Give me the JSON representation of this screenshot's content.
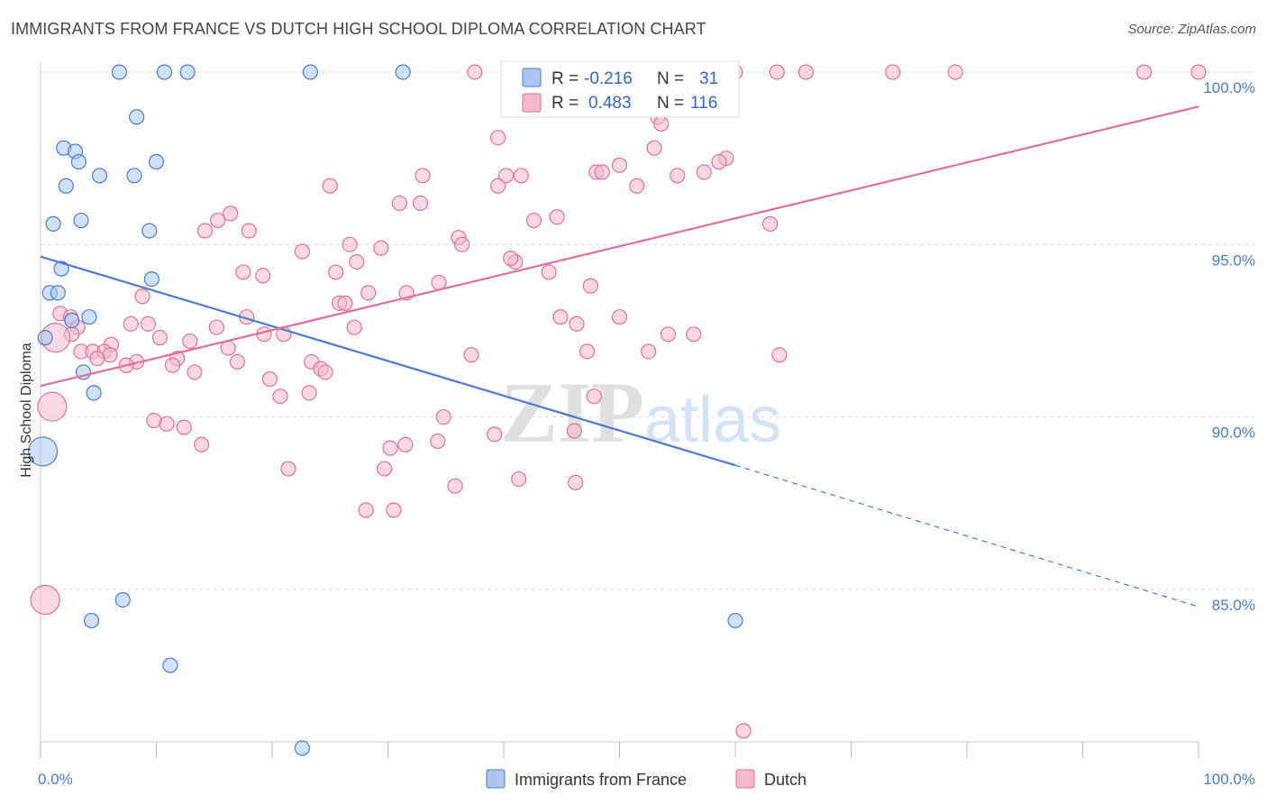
{
  "header": {
    "title": "IMMIGRANTS FROM FRANCE VS DUTCH HIGH SCHOOL DIPLOMA CORRELATION CHART",
    "source": "Source: ZipAtlas.com"
  },
  "colors": {
    "blue": "#4a7bd0",
    "blue_fill": "#aac6ee",
    "pink": "#e07098",
    "pink_fill": "#f5b8cc",
    "grid": "#dddddd"
  },
  "watermark": {
    "zip": "ZIP",
    "atlas": "atlas"
  },
  "chart_data": {
    "type": "scatter",
    "title": "IMMIGRANTS FROM FRANCE VS DUTCH HIGH SCHOOL DIPLOMA CORRELATION CHART",
    "xlabel": "",
    "ylabel": "High School Diploma",
    "xlim": [
      0,
      100
    ],
    "ylim": [
      80.0,
      100.5
    ],
    "x_tick_labels": [
      {
        "value": 0,
        "label": "0.0%"
      },
      {
        "value": 100,
        "label": "100.0%"
      }
    ],
    "y_tick_labels": [
      {
        "value": 85,
        "label": "85.0%"
      },
      {
        "value": 90,
        "label": "90.0%"
      },
      {
        "value": 95,
        "label": "95.0%"
      },
      {
        "value": 100,
        "label": "100.0%"
      }
    ],
    "grid": true,
    "legend_position": "top-center",
    "series": [
      {
        "name": "Immigrants from France",
        "r_label": "R =",
        "r_value": "-0.216",
        "n_label": "N =",
        "n_value": "31",
        "trend": {
          "x0": 0,
          "y0": 94.65,
          "x1": 60,
          "y1": 88.6,
          "dash_x1": 100,
          "dash_y1": 84.5
        },
        "points": [
          {
            "x": 6.8,
            "y": 100.0
          },
          {
            "x": 10.7,
            "y": 100.0
          },
          {
            "x": 12.7,
            "y": 100.0
          },
          {
            "x": 23.3,
            "y": 100.0
          },
          {
            "x": 31.3,
            "y": 100.0
          },
          {
            "x": 8.3,
            "y": 98.7
          },
          {
            "x": 2.0,
            "y": 97.8
          },
          {
            "x": 3.0,
            "y": 97.7
          },
          {
            "x": 3.3,
            "y": 97.4
          },
          {
            "x": 5.1,
            "y": 97.0
          },
          {
            "x": 8.1,
            "y": 97.0
          },
          {
            "x": 10.0,
            "y": 97.4
          },
          {
            "x": 2.2,
            "y": 96.7
          },
          {
            "x": 1.1,
            "y": 95.6
          },
          {
            "x": 3.5,
            "y": 95.7
          },
          {
            "x": 9.4,
            "y": 95.4
          },
          {
            "x": 1.8,
            "y": 94.3
          },
          {
            "x": 9.6,
            "y": 94.0
          },
          {
            "x": 0.8,
            "y": 93.6
          },
          {
            "x": 1.5,
            "y": 93.6
          },
          {
            "x": 2.7,
            "y": 92.8
          },
          {
            "x": 4.2,
            "y": 92.9
          },
          {
            "x": 0.4,
            "y": 92.3
          },
          {
            "x": 3.7,
            "y": 91.3
          },
          {
            "x": 4.6,
            "y": 90.7
          },
          {
            "x": 0.2,
            "y": 89.0,
            "large": true
          },
          {
            "x": 7.1,
            "y": 84.7
          },
          {
            "x": 4.4,
            "y": 84.1
          },
          {
            "x": 60.0,
            "y": 84.1
          },
          {
            "x": 11.2,
            "y": 82.8
          },
          {
            "x": 22.6,
            "y": 80.4
          }
        ]
      },
      {
        "name": "Dutch",
        "r_label": "R =",
        "r_value": "0.483",
        "n_label": "N =",
        "n_value": "116",
        "trend": {
          "x0": 0,
          "y0": 90.9,
          "x1": 100,
          "y1": 99.0
        },
        "points": [
          {
            "x": 37.5,
            "y": 100.0
          },
          {
            "x": 52.6,
            "y": 100.0
          },
          {
            "x": 60.0,
            "y": 100.0
          },
          {
            "x": 63.6,
            "y": 100.0
          },
          {
            "x": 66.1,
            "y": 100.0
          },
          {
            "x": 73.6,
            "y": 100.0
          },
          {
            "x": 79.0,
            "y": 100.0
          },
          {
            "x": 95.3,
            "y": 100.0
          },
          {
            "x": 100.0,
            "y": 100.0
          },
          {
            "x": 53.3,
            "y": 98.7
          },
          {
            "x": 53.6,
            "y": 98.5
          },
          {
            "x": 39.5,
            "y": 98.1
          },
          {
            "x": 53.0,
            "y": 97.8
          },
          {
            "x": 59.2,
            "y": 97.5
          },
          {
            "x": 58.6,
            "y": 97.4
          },
          {
            "x": 50.0,
            "y": 97.3
          },
          {
            "x": 48.0,
            "y": 97.1
          },
          {
            "x": 48.5,
            "y": 97.1
          },
          {
            "x": 40.2,
            "y": 97.0
          },
          {
            "x": 41.5,
            "y": 97.0
          },
          {
            "x": 33.0,
            "y": 97.0
          },
          {
            "x": 55.0,
            "y": 97.0
          },
          {
            "x": 57.3,
            "y": 97.1
          },
          {
            "x": 39.5,
            "y": 96.7
          },
          {
            "x": 25.0,
            "y": 96.7
          },
          {
            "x": 51.5,
            "y": 96.7
          },
          {
            "x": 31.0,
            "y": 96.2
          },
          {
            "x": 32.8,
            "y": 96.2
          },
          {
            "x": 16.4,
            "y": 95.9
          },
          {
            "x": 15.3,
            "y": 95.7
          },
          {
            "x": 42.6,
            "y": 95.7
          },
          {
            "x": 44.6,
            "y": 95.8
          },
          {
            "x": 14.2,
            "y": 95.4
          },
          {
            "x": 18.0,
            "y": 95.4
          },
          {
            "x": 63.0,
            "y": 95.6
          },
          {
            "x": 36.1,
            "y": 95.2
          },
          {
            "x": 36.4,
            "y": 95.0
          },
          {
            "x": 26.7,
            "y": 95.0
          },
          {
            "x": 22.6,
            "y": 94.8
          },
          {
            "x": 29.4,
            "y": 94.9
          },
          {
            "x": 41.0,
            "y": 94.5
          },
          {
            "x": 40.6,
            "y": 94.6
          },
          {
            "x": 27.3,
            "y": 94.5
          },
          {
            "x": 17.5,
            "y": 94.2
          },
          {
            "x": 19.2,
            "y": 94.1
          },
          {
            "x": 25.5,
            "y": 94.2
          },
          {
            "x": 43.9,
            "y": 94.2
          },
          {
            "x": 34.4,
            "y": 93.9
          },
          {
            "x": 31.6,
            "y": 93.6
          },
          {
            "x": 28.3,
            "y": 93.6
          },
          {
            "x": 47.5,
            "y": 93.8
          },
          {
            "x": 8.8,
            "y": 93.5
          },
          {
            "x": 25.8,
            "y": 93.3
          },
          {
            "x": 26.3,
            "y": 93.3
          },
          {
            "x": 1.7,
            "y": 93.0
          },
          {
            "x": 2.6,
            "y": 92.9
          },
          {
            "x": 17.8,
            "y": 92.9
          },
          {
            "x": 44.9,
            "y": 92.9
          },
          {
            "x": 50.0,
            "y": 92.9
          },
          {
            "x": 46.3,
            "y": 92.7
          },
          {
            "x": 7.8,
            "y": 92.7
          },
          {
            "x": 9.3,
            "y": 92.7
          },
          {
            "x": 3.2,
            "y": 92.6
          },
          {
            "x": 15.2,
            "y": 92.6
          },
          {
            "x": 19.3,
            "y": 92.4
          },
          {
            "x": 27.1,
            "y": 92.6
          },
          {
            "x": 2.7,
            "y": 92.4
          },
          {
            "x": 21.0,
            "y": 92.4
          },
          {
            "x": 54.2,
            "y": 92.4
          },
          {
            "x": 56.4,
            "y": 92.4
          },
          {
            "x": 1.3,
            "y": 92.3,
            "large": true
          },
          {
            "x": 10.3,
            "y": 92.3
          },
          {
            "x": 12.9,
            "y": 92.2
          },
          {
            "x": 6.1,
            "y": 92.1
          },
          {
            "x": 3.5,
            "y": 91.9
          },
          {
            "x": 4.5,
            "y": 91.9
          },
          {
            "x": 5.5,
            "y": 91.9
          },
          {
            "x": 6.0,
            "y": 91.8
          },
          {
            "x": 16.2,
            "y": 92.0
          },
          {
            "x": 47.2,
            "y": 91.9
          },
          {
            "x": 52.5,
            "y": 91.9
          },
          {
            "x": 63.8,
            "y": 91.8
          },
          {
            "x": 37.2,
            "y": 91.8
          },
          {
            "x": 4.9,
            "y": 91.7
          },
          {
            "x": 11.8,
            "y": 91.7
          },
          {
            "x": 8.3,
            "y": 91.6
          },
          {
            "x": 17.0,
            "y": 91.6
          },
          {
            "x": 23.4,
            "y": 91.6
          },
          {
            "x": 7.4,
            "y": 91.5
          },
          {
            "x": 11.4,
            "y": 91.5
          },
          {
            "x": 24.2,
            "y": 91.4
          },
          {
            "x": 13.3,
            "y": 91.3
          },
          {
            "x": 24.6,
            "y": 91.3
          },
          {
            "x": 19.8,
            "y": 91.1
          },
          {
            "x": 23.2,
            "y": 90.7
          },
          {
            "x": 20.7,
            "y": 90.6
          },
          {
            "x": 47.8,
            "y": 90.6
          },
          {
            "x": 1.0,
            "y": 90.3,
            "large": true
          },
          {
            "x": 34.8,
            "y": 90.0
          },
          {
            "x": 9.8,
            "y": 89.9
          },
          {
            "x": 10.9,
            "y": 89.8
          },
          {
            "x": 12.4,
            "y": 89.7
          },
          {
            "x": 39.2,
            "y": 89.5
          },
          {
            "x": 46.1,
            "y": 89.6
          },
          {
            "x": 34.3,
            "y": 89.3
          },
          {
            "x": 31.5,
            "y": 89.2
          },
          {
            "x": 13.9,
            "y": 89.2
          },
          {
            "x": 30.2,
            "y": 89.1
          },
          {
            "x": 21.4,
            "y": 88.5
          },
          {
            "x": 29.7,
            "y": 88.5
          },
          {
            "x": 41.3,
            "y": 88.2
          },
          {
            "x": 46.2,
            "y": 88.1
          },
          {
            "x": 35.8,
            "y": 88.0
          },
          {
            "x": 28.1,
            "y": 87.3
          },
          {
            "x": 30.5,
            "y": 87.3
          },
          {
            "x": 0.4,
            "y": 84.7,
            "large": true
          },
          {
            "x": 60.7,
            "y": 80.9
          }
        ]
      }
    ]
  }
}
